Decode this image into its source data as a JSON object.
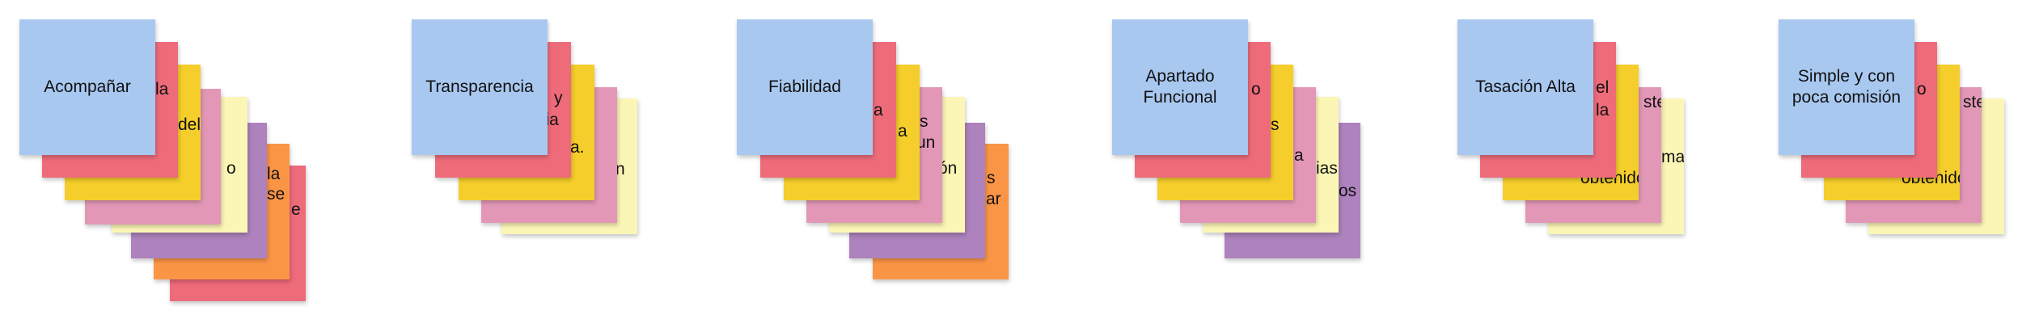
{
  "colors": {
    "blue": "#a8c8f0",
    "red": "#ee6b7a",
    "yellow": "#f5ce2b",
    "pink": "#e397b7",
    "cream": "#fbf6b6",
    "purple": "#ad82bd",
    "orange": "#fb9546"
  },
  "clusters": [
    {
      "title": "Acompañar",
      "fragments": [
        "la",
        "del",
        "o",
        "la",
        "se",
        "e"
      ]
    },
    {
      "title": "Transparencia",
      "fragments": [
        "y",
        "cia",
        "a.",
        "n"
      ]
    },
    {
      "title": "Fiabilidad",
      "fragments": [
        "a",
        "a",
        "s",
        "un",
        "ón",
        "s",
        "ar"
      ]
    },
    {
      "title": "Apartado Funcional",
      "fragments": [
        "o",
        "s",
        "a",
        "ias",
        "os"
      ]
    },
    {
      "title": "Tasación Alta",
      "fragments": [
        "el",
        "la",
        "ste",
        "obtenido",
        "mas"
      ]
    },
    {
      "title": "Simple y con poca comisión",
      "fragments": [
        "o",
        "ste",
        "obtenido"
      ]
    }
  ]
}
